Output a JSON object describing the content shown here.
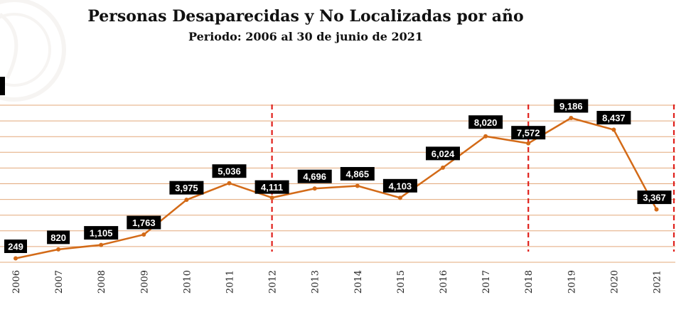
{
  "header": {
    "title": "Personas Desaparecidas y No Localizadas por año",
    "subtitle": "Periodo: 2006 al 30 de junio de 2021"
  },
  "colors": {
    "line": "#D36A17",
    "grid": "#E3A87A",
    "divider": "#E0201B",
    "label_bg": "#000000",
    "label_text": "#FFFFFF"
  },
  "chart_data": {
    "type": "line",
    "title": "Personas Desaparecidas y No Localizadas por año",
    "subtitle": "Periodo: 2006 al 30 de junio de 2021",
    "xlabel": "",
    "ylabel": "",
    "categories": [
      "2006",
      "2007",
      "2008",
      "2009",
      "2010",
      "2011",
      "2012",
      "2013",
      "2014",
      "2015",
      "2016",
      "2017",
      "2018",
      "2019",
      "2020",
      "2021"
    ],
    "values": [
      249,
      820,
      1105,
      1763,
      3975,
      5036,
      4111,
      4696,
      4865,
      4103,
      6024,
      8020,
      7572,
      9186,
      8437,
      3367
    ],
    "data_labels": [
      "249",
      "820",
      "1,105",
      "1,763",
      "3,975",
      "5,036",
      "4,111",
      "4,696",
      "4,865",
      "4,103",
      "6,024",
      "8,020",
      "7,572",
      "9,186",
      "8,437",
      "3,367"
    ],
    "ylim": [
      0,
      10000
    ],
    "grid": true,
    "gridlines_count": 10,
    "vertical_dividers_at": [
      "2012",
      "2018"
    ],
    "legend": "none"
  }
}
